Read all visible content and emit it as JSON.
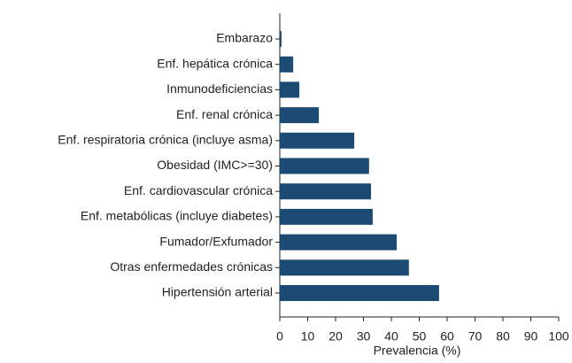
{
  "chart_data": {
    "type": "barh",
    "categories": [
      "Embarazo",
      "Enf. hepática crónica",
      "Inmunodeficiencias",
      "Enf. renal crónica",
      "Enf. respiratoria crónica (incluye asma)",
      "Obesidad (IMC>=30)",
      "Enf. cardiovascular crónica",
      "Enf. metabólicas (incluye diabetes)",
      "Fumador/Exfumador",
      "Otras enfermedades crónicas",
      "Hipertensión arterial"
    ],
    "values": [
      0.6,
      4.8,
      7,
      14,
      26.7,
      32,
      32.7,
      33.3,
      41.9,
      46.3,
      57.1
    ],
    "color": "#1b4a72",
    "x_label": "Prevalencia (%)",
    "xlim": [
      0,
      100
    ],
    "xticks": [
      0,
      10,
      20,
      30,
      40,
      50,
      60,
      70,
      80,
      90,
      100
    ]
  }
}
